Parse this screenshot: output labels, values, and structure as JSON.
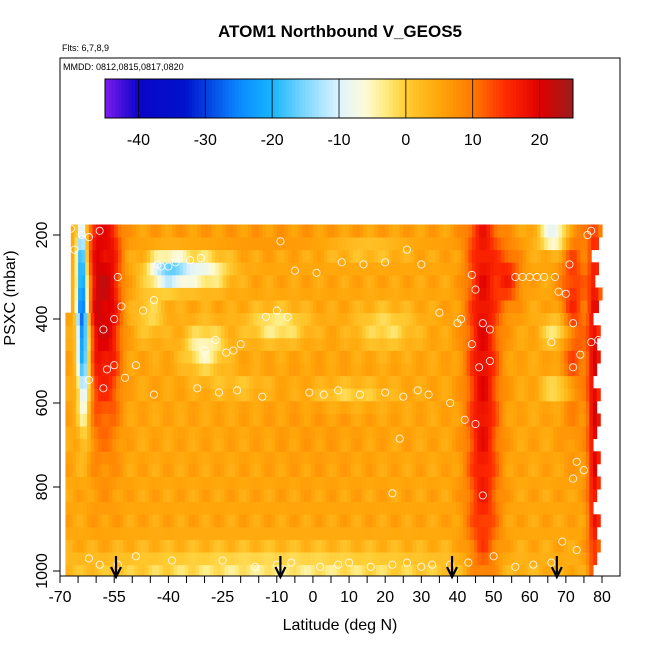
{
  "chart_data": {
    "type": "heatmap",
    "title": "ATOM1 Northbound V_GEOS5",
    "subtitle_flights": "Flts: 6,7,8,9",
    "subtitle_dates": "MMDD: 0812,0815,0817,0820",
    "xlabel": "Latitude (deg N)",
    "ylabel": "PSXC (mbar)",
    "x_ticks": [
      -70,
      -55,
      -40,
      -25,
      -10,
      0,
      10,
      20,
      30,
      40,
      50,
      60,
      70,
      80
    ],
    "x_ticks_minor": [
      -65,
      -60,
      -50,
      -45,
      -35,
      -30,
      -20,
      -15,
      -5,
      5,
      15,
      25,
      35,
      45,
      55,
      65,
      75
    ],
    "xlim": [
      -70,
      80
    ],
    "y_ticks": [
      200,
      400,
      600,
      800,
      1000
    ],
    "ylim": [
      1000,
      150
    ],
    "y_reversed": true,
    "colorbar": {
      "ticks": [
        -40,
        -30,
        -20,
        -10,
        0,
        10,
        20
      ],
      "range": [
        -45,
        25
      ],
      "stops": [
        {
          "v": -45,
          "c": "#7b1cf0"
        },
        {
          "v": -40,
          "c": "#0b05c8"
        },
        {
          "v": -33,
          "c": "#0012cc"
        },
        {
          "v": -25,
          "c": "#0a88ff"
        },
        {
          "v": -20,
          "c": "#19b5ff"
        },
        {
          "v": -15,
          "c": "#7fd8ff"
        },
        {
          "v": -10,
          "c": "#def3ff"
        },
        {
          "v": -6,
          "c": "#fdfbd8"
        },
        {
          "v": -3,
          "c": "#ffec80"
        },
        {
          "v": 0,
          "c": "#ffcd33"
        },
        {
          "v": 5,
          "c": "#ffa60a"
        },
        {
          "v": 10,
          "c": "#ff7b00"
        },
        {
          "v": 15,
          "c": "#ff2a00"
        },
        {
          "v": 20,
          "c": "#e00000"
        },
        {
          "v": 25,
          "c": "#9a1d1d"
        }
      ]
    },
    "pressure_levels": [
      1000,
      970,
      940,
      910,
      880,
      850,
      820,
      790,
      760,
      730,
      700,
      670,
      640,
      610,
      580,
      550,
      520,
      490,
      460,
      430,
      400,
      370,
      340,
      310,
      280,
      250,
      220,
      190
    ],
    "lat_bounds": [
      -68.5,
      78.5
    ],
    "field": {
      "background": 5,
      "features": [
        {
          "lat": -64,
          "lw": 1.0,
          "p": 330,
          "pw": 150,
          "a": -28
        },
        {
          "lat": -63,
          "lw": 1.2,
          "p": 500,
          "pw": 120,
          "a": -14
        },
        {
          "lat": -60,
          "lw": 1.8,
          "p": 350,
          "pw": 220,
          "a": 13
        },
        {
          "lat": -56,
          "lw": 2.2,
          "p": 350,
          "pw": 220,
          "a": 14
        },
        {
          "lat": -40,
          "lw": 4,
          "p": 285,
          "pw": 30,
          "a": -20
        },
        {
          "lat": -30,
          "lw": 5,
          "p": 285,
          "pw": 30,
          "a": -12
        },
        {
          "lat": -30,
          "lw": 4,
          "p": 470,
          "pw": 40,
          "a": -11
        },
        {
          "lat": -45,
          "lw": 3,
          "p": 390,
          "pw": 40,
          "a": -6
        },
        {
          "lat": -10,
          "lw": 6,
          "p": 415,
          "pw": 30,
          "a": -9
        },
        {
          "lat": 20,
          "lw": 6,
          "p": 420,
          "pw": 35,
          "a": -7
        },
        {
          "lat": 10,
          "lw": 8,
          "p": 575,
          "pw": 20,
          "a": -6
        },
        {
          "lat": -20,
          "lw": 6,
          "p": 560,
          "pw": 20,
          "a": -4
        },
        {
          "lat": 15,
          "lw": 8,
          "p": 230,
          "pw": 20,
          "a": -5
        },
        {
          "lat": 0,
          "lw": 10,
          "p": 650,
          "pw": 100,
          "a": 1
        },
        {
          "lat": 47,
          "lw": 3.2,
          "p": 500,
          "pw": 480,
          "a": 14
        },
        {
          "lat": 54,
          "lw": 2.5,
          "p": 300,
          "pw": 50,
          "a": 10
        },
        {
          "lat": 72,
          "lw": 2.5,
          "p": 370,
          "pw": 180,
          "a": 10
        },
        {
          "lat": 78,
          "lw": 1.4,
          "p": 600,
          "pw": 420,
          "a": 15
        },
        {
          "lat": 68,
          "lw": 3,
          "p": 430,
          "pw": 25,
          "a": -10
        },
        {
          "lat": 68,
          "lw": 3,
          "p": 565,
          "pw": 20,
          "a": -10
        },
        {
          "lat": 67,
          "lw": 3,
          "p": 200,
          "pw": 25,
          "a": -16
        },
        {
          "lat": -10,
          "lw": 40,
          "p": 1000,
          "pw": 40,
          "a": -8
        },
        {
          "lat": -10,
          "lw": 40,
          "p": 205,
          "pw": 18,
          "a": 2
        }
      ]
    },
    "profile_points": [
      [
        -67,
        185
      ],
      [
        -66,
        235
      ],
      [
        -64,
        200
      ],
      [
        -62,
        205
      ],
      [
        -59,
        190
      ],
      [
        -58,
        425
      ],
      [
        -54,
        300
      ],
      [
        -55,
        400
      ],
      [
        -53,
        370
      ],
      [
        -57,
        520
      ],
      [
        -55,
        510
      ],
      [
        -52,
        540
      ],
      [
        -49,
        510
      ],
      [
        -47,
        380
      ],
      [
        -44,
        355
      ],
      [
        -43,
        270
      ],
      [
        -42,
        275
      ],
      [
        -40,
        275
      ],
      [
        -38,
        265
      ],
      [
        -34,
        260
      ],
      [
        -31,
        255
      ],
      [
        -30,
        475
      ],
      [
        -27,
        450
      ],
      [
        -24,
        480
      ],
      [
        -22,
        475
      ],
      [
        -20,
        460
      ],
      [
        -13,
        395
      ],
      [
        -10,
        380
      ],
      [
        -7,
        395
      ],
      [
        -9,
        215
      ],
      [
        -5,
        285
      ],
      [
        1,
        290
      ],
      [
        8,
        265
      ],
      [
        14,
        270
      ],
      [
        20,
        265
      ],
      [
        26,
        235
      ],
      [
        30,
        270
      ],
      [
        35,
        385
      ],
      [
        40,
        410
      ],
      [
        41,
        400
      ],
      [
        44,
        460
      ],
      [
        46,
        515
      ],
      [
        47,
        410
      ],
      [
        49,
        425
      ],
      [
        49,
        500
      ],
      [
        45,
        330
      ],
      [
        44,
        295
      ],
      [
        56,
        300
      ],
      [
        58,
        300
      ],
      [
        60,
        300
      ],
      [
        62,
        300
      ],
      [
        64,
        300
      ],
      [
        67,
        300
      ],
      [
        66,
        455
      ],
      [
        68,
        335
      ],
      [
        70,
        340
      ],
      [
        71,
        270
      ],
      [
        72,
        515
      ],
      [
        74,
        485
      ],
      [
        77,
        455
      ],
      [
        79,
        450
      ],
      [
        76,
        200
      ],
      [
        77,
        190
      ],
      [
        72,
        410
      ],
      [
        73,
        740
      ],
      [
        75,
        760
      ],
      [
        72,
        780
      ],
      [
        69,
        930
      ],
      [
        73,
        950
      ],
      [
        -62,
        545
      ],
      [
        -58,
        565
      ],
      [
        -44,
        580
      ],
      [
        -32,
        565
      ],
      [
        -26,
        575
      ],
      [
        -21,
        570
      ],
      [
        -14,
        585
      ],
      [
        -1,
        575
      ],
      [
        3,
        580
      ],
      [
        7,
        570
      ],
      [
        13,
        580
      ],
      [
        20,
        575
      ],
      [
        25,
        585
      ],
      [
        29,
        570
      ],
      [
        32,
        580
      ],
      [
        38,
        600
      ],
      [
        45,
        650
      ],
      [
        42,
        640
      ],
      [
        24,
        685
      ],
      [
        22,
        815
      ],
      [
        47,
        820
      ],
      [
        -62,
        970
      ],
      [
        -59,
        985
      ],
      [
        -54,
        985
      ],
      [
        -49,
        965
      ],
      [
        -39,
        975
      ],
      [
        -25,
        975
      ],
      [
        -16,
        990
      ],
      [
        -10,
        985
      ],
      [
        -6,
        980
      ],
      [
        2,
        990
      ],
      [
        7,
        985
      ],
      [
        10,
        980
      ],
      [
        16,
        990
      ],
      [
        22,
        985
      ],
      [
        26,
        980
      ],
      [
        30,
        990
      ],
      [
        33,
        985
      ],
      [
        38,
        985
      ],
      [
        43,
        980
      ],
      [
        50,
        965
      ],
      [
        56,
        990
      ],
      [
        61,
        985
      ],
      [
        66,
        980
      ]
    ],
    "flight_markers": [
      -54.5,
      -9,
      38.5,
      67.5
    ]
  }
}
